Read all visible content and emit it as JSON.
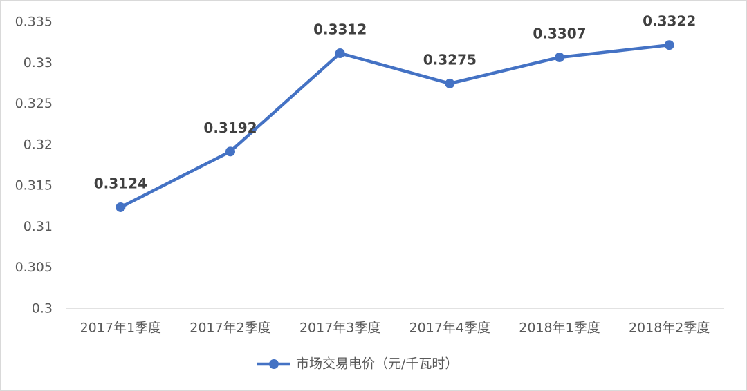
{
  "chart_data": {
    "type": "line",
    "categories": [
      "2017年1季度",
      "2017年2季度",
      "2017年3季度",
      "2017年4季度",
      "2018年1季度",
      "2018年2季度"
    ],
    "series": [
      {
        "name": "市场交易电价（元/千瓦时）",
        "color": "#4472c4",
        "values": [
          0.3124,
          0.3192,
          0.3312,
          0.3275,
          0.3307,
          0.3322
        ]
      }
    ],
    "ylim": [
      0.3,
      0.335
    ],
    "yticks": [
      0.3,
      0.305,
      0.31,
      0.315,
      0.32,
      0.325,
      0.33,
      0.335
    ],
    "grid": false,
    "legend": "bottom"
  }
}
